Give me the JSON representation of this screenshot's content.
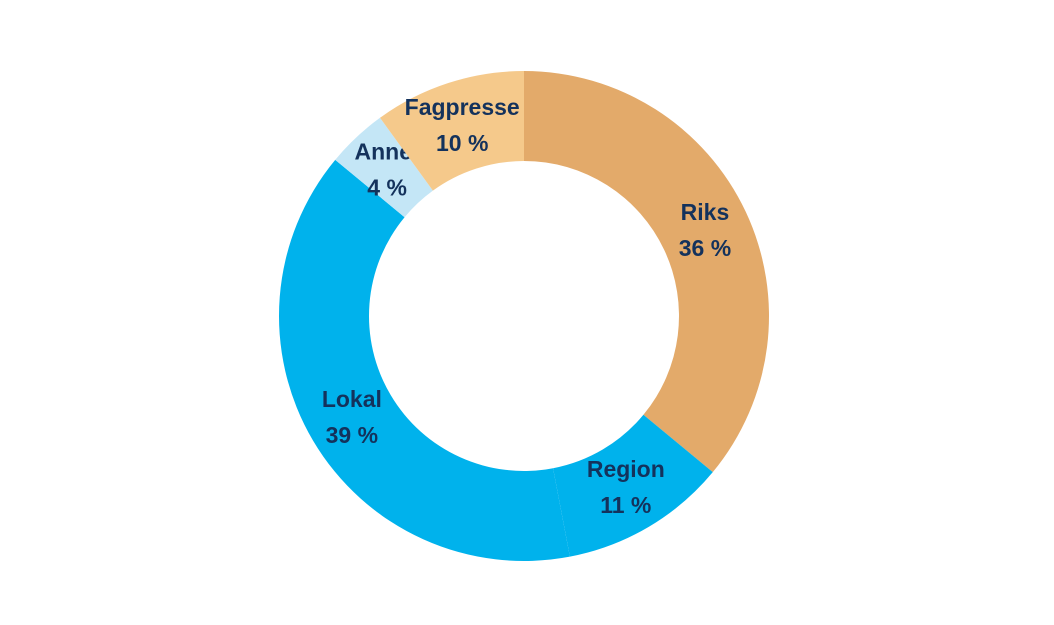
{
  "chart_data": {
    "type": "donut",
    "categories": [
      "Riks",
      "Region",
      "Lokal",
      "Annet",
      "Fagpresse"
    ],
    "values": [
      36,
      11,
      39,
      4,
      10
    ],
    "value_labels": [
      "36 %",
      "11 %",
      "39 %",
      "4 %",
      "10 %"
    ],
    "colors": [
      "#e3aa6a",
      "#00b2ec",
      "#00b2ec",
      "#c4e6f6",
      "#f5c98b"
    ]
  }
}
